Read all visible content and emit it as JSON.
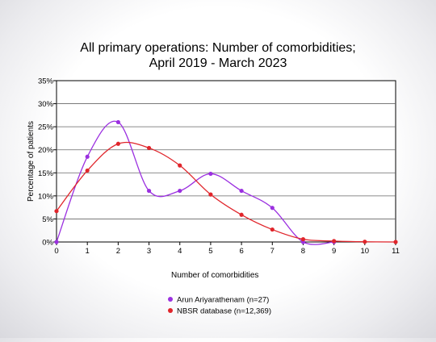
{
  "chart_data": {
    "type": "line",
    "title": [
      "All primary operations: Number of comorbidities;",
      "April 2019 - March 2023"
    ],
    "xlabel": "Number of comorbidities",
    "ylabel": "Percentage of patients",
    "x": [
      0,
      1,
      2,
      3,
      4,
      5,
      6,
      7,
      8,
      9,
      10,
      11
    ],
    "xlim": [
      0,
      11
    ],
    "ylim": [
      0,
      35
    ],
    "yticks": [
      0,
      5,
      10,
      15,
      20,
      25,
      30,
      35
    ],
    "ytick_labels": [
      "0%",
      "5%",
      "10%",
      "15%",
      "20%",
      "25%",
      "30%",
      "35%"
    ],
    "grid": true,
    "legend_position": "bottom",
    "series": [
      {
        "name": "Arun Ariyarathenam (n=27)",
        "color": "#9b30e0",
        "x": [
          0,
          1,
          2,
          3,
          4,
          5,
          6,
          7,
          8,
          9
        ],
        "values": [
          0,
          18.5,
          26,
          11.1,
          11.1,
          14.8,
          11.1,
          7.4,
          0,
          0
        ]
      },
      {
        "name": "NBSR database (n=12,369)",
        "color": "#e0252b",
        "x": [
          0,
          1,
          2,
          3,
          4,
          5,
          6,
          7,
          8,
          9,
          10,
          11
        ],
        "values": [
          6.7,
          15.5,
          21.3,
          20.4,
          16.6,
          10.3,
          5.9,
          2.7,
          0.6,
          0.2,
          0.05,
          0
        ]
      }
    ]
  }
}
